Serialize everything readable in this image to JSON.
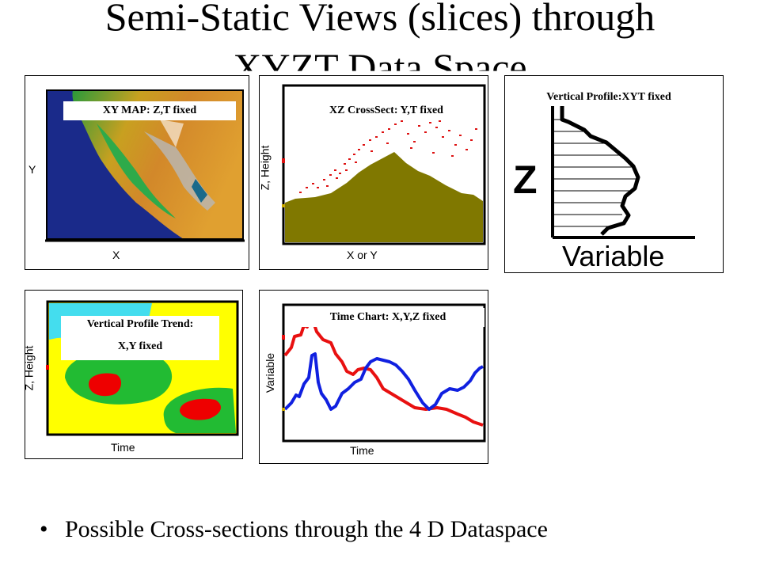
{
  "title": {
    "line1": "Semi-Static Views (slices) through",
    "line2": "XYZT Data Space"
  },
  "panels": {
    "xy_map": {
      "label": "XY MAP:  Z,T fixed",
      "xlabel": "X",
      "ylabel": "Y"
    },
    "xz_cross": {
      "label": "XZ CrossSect:  Y,T fixed",
      "xlabel": "X or Y",
      "ylabel": "Z, Height"
    },
    "vertical_profile": {
      "label": "Vertical Profile:XYT fixed",
      "xlabel": "Variable",
      "ylabel": "Z"
    },
    "profile_trend": {
      "label_line1": "Vertical Profile Trend:",
      "label_line2": "X,Y fixed",
      "xlabel": "Time",
      "ylabel": "Z, Height"
    },
    "time_chart": {
      "label": "Time Chart: X,Y,Z fixed",
      "xlabel": "Time",
      "ylabel": "Variable"
    }
  },
  "bullet": {
    "text": "Possible Cross-sections through the 4 D Dataspace"
  },
  "colors": {
    "ocean": "#1a2a8a",
    "terrain": "#807800",
    "scatter": "#dd1111",
    "trend_yellow": "#ffff00",
    "trend_green": "#22bb33",
    "trend_red": "#ee0000",
    "trend_cyan": "#44ddee",
    "line_red": "#e81010",
    "line_blue": "#1020e0"
  }
}
